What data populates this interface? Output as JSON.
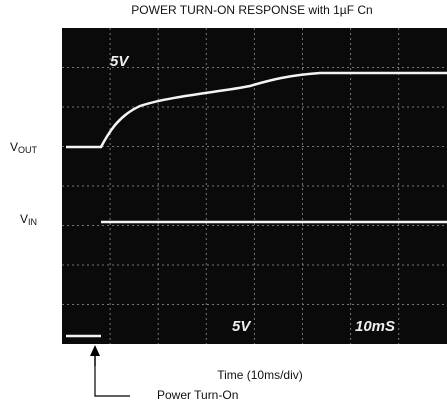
{
  "title": "POWER TURN-ON RESPONSE with 1µF Cn",
  "labels": {
    "vout": {
      "main": "V",
      "sub": "OUT"
    },
    "vin": {
      "main": "V",
      "sub": "IN"
    }
  },
  "screen": {
    "top_scale": "5V",
    "bottom_scale": "5V",
    "timebase": "10mS"
  },
  "x_label": "Time (10ms/div)",
  "marker": "Power Turn-On"
}
